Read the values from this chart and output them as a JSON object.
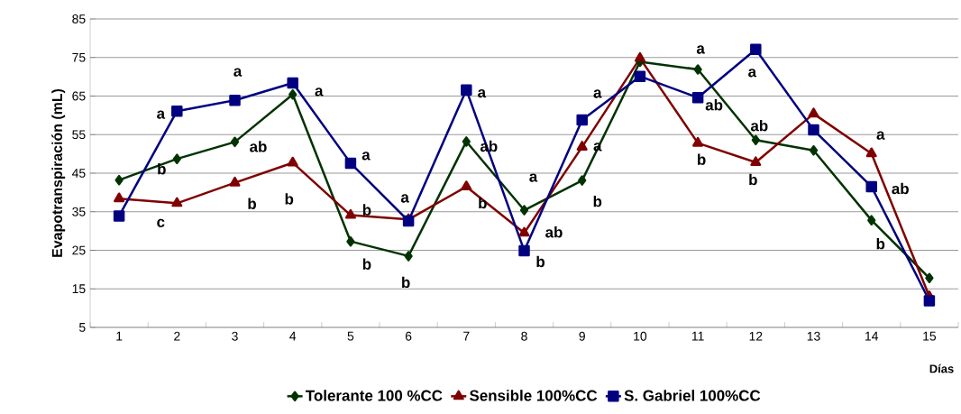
{
  "chart_data": {
    "type": "line",
    "xlabel": "Días",
    "ylabel": "Evapotranspiración (mL)",
    "x": [
      1,
      2,
      3,
      4,
      5,
      6,
      7,
      8,
      9,
      10,
      11,
      12,
      13,
      14,
      15
    ],
    "xlim": [
      0.5,
      15.5
    ],
    "xticks": [
      1,
      2,
      3,
      4,
      5,
      6,
      7,
      8,
      9,
      10,
      11,
      12,
      13,
      14,
      15
    ],
    "ylim": [
      5,
      85
    ],
    "yticks": [
      5,
      15,
      25,
      35,
      45,
      55,
      65,
      75,
      85
    ],
    "grid": "y",
    "legend": "bottom",
    "series": [
      {
        "name": "Tolerante 100 %CC",
        "color": "#003300",
        "marker": "diamond",
        "values": [
          43.2,
          48.7,
          53.1,
          65.4,
          27.3,
          23.5,
          53.2,
          35.4,
          43.1,
          73.9,
          71.9,
          53.6,
          50.9,
          32.8,
          17.8
        ]
      },
      {
        "name": "Sensible 100%CC",
        "color": "#800000",
        "marker": "triangle",
        "values": [
          38.4,
          37.2,
          42.5,
          47.7,
          34.1,
          33.0,
          41.5,
          29.5,
          51.8,
          74.8,
          52.8,
          47.8,
          60.4,
          50.1,
          13.0
        ]
      },
      {
        "name": "S. Gabriel 100%CC",
        "color": "#000080",
        "marker": "square",
        "values": [
          33.9,
          61.1,
          63.9,
          68.4,
          47.6,
          32.6,
          66.6,
          24.9,
          58.8,
          70.1,
          64.6,
          77.1,
          56.2,
          41.5,
          11.9
        ]
      }
    ],
    "annotations": [
      {
        "text": "a",
        "x": 3,
        "y": 63.9
      },
      {
        "text": "a",
        "x": 4,
        "y": 68.4
      },
      {
        "text": "a",
        "x": 2,
        "y": 61.1
      },
      {
        "text": "ab",
        "x": 3,
        "y": 53.1
      },
      {
        "text": "b",
        "x": 2,
        "y": 48.7
      },
      {
        "text": "b",
        "x": 3,
        "y": 42.5
      },
      {
        "text": "b",
        "x": 4,
        "y": 47.7
      },
      {
        "text": "c",
        "x": 2,
        "y": 37.2
      },
      {
        "text": "a",
        "x": 5,
        "y": 47.6
      },
      {
        "text": "b",
        "x": 5,
        "y": 34.1
      },
      {
        "text": "a",
        "x": 6,
        "y": 32.6
      },
      {
        "text": "b",
        "x": 5,
        "y": 27.3
      },
      {
        "text": "b",
        "x": 6,
        "y": 23.5
      },
      {
        "text": "a",
        "x": 7,
        "y": 66.6
      },
      {
        "text": "ab",
        "x": 7,
        "y": 53.2
      },
      {
        "text": "b",
        "x": 7,
        "y": 41.5
      },
      {
        "text": "a",
        "x": 8,
        "y": 35.4
      },
      {
        "text": "ab",
        "x": 8,
        "y": 29.5
      },
      {
        "text": "b",
        "x": 8,
        "y": 24.9
      },
      {
        "text": "a",
        "x": 9,
        "y": 58.8
      },
      {
        "text": "a",
        "x": 9,
        "y": 51.8
      },
      {
        "text": "b",
        "x": 9,
        "y": 43.1
      },
      {
        "text": "a",
        "x": 11,
        "y": 71.9
      },
      {
        "text": "ab",
        "x": 11,
        "y": 64.6
      },
      {
        "text": "b",
        "x": 11,
        "y": 52.8
      },
      {
        "text": "a",
        "x": 12,
        "y": 77.1
      },
      {
        "text": "ab",
        "x": 12,
        "y": 53.6
      },
      {
        "text": "b",
        "x": 12,
        "y": 47.8
      },
      {
        "text": "a",
        "x": 14,
        "y": 50.1
      },
      {
        "text": "ab",
        "x": 14,
        "y": 41.5
      },
      {
        "text": "b",
        "x": 14,
        "y": 32.8
      }
    ]
  }
}
